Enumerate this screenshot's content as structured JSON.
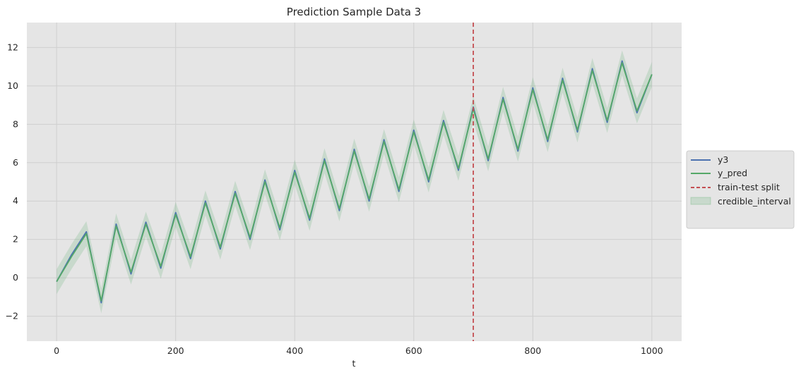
{
  "chart_data": {
    "type": "line",
    "title": "Prediction Sample Data 3",
    "xlabel": "t",
    "ylabel": "",
    "xlim": [
      -50,
      1050
    ],
    "ylim": [
      -3.3,
      13.3
    ],
    "xticks": [
      0,
      200,
      400,
      600,
      800,
      1000
    ],
    "yticks": [
      -2,
      0,
      2,
      4,
      6,
      8,
      10,
      12
    ],
    "x_tick_labels": [
      "0",
      "200",
      "400",
      "600",
      "800",
      "1000"
    ],
    "y_tick_labels": [
      "−2",
      "0",
      "2",
      "4",
      "6",
      "8",
      "10",
      "12"
    ],
    "grid": true,
    "legend_position": "center-right-outside",
    "split_x": 700,
    "series": [
      {
        "name": "y3",
        "color": "#4c72b0",
        "kind": "line"
      },
      {
        "name": "y_pred",
        "color": "#55a868",
        "kind": "line"
      },
      {
        "name": "train-test split",
        "color": "#c44e52",
        "kind": "dashed"
      },
      {
        "name": "credible_interval",
        "color": "#55a868",
        "kind": "band"
      }
    ],
    "x": [
      0,
      25,
      50,
      75,
      100,
      125,
      150,
      175,
      200,
      225,
      250,
      275,
      300,
      325,
      350,
      375,
      400,
      425,
      450,
      475,
      500,
      525,
      550,
      575,
      600,
      625,
      650,
      675,
      700,
      725,
      750,
      775,
      800,
      825,
      850,
      875,
      900,
      925,
      950,
      975,
      1000
    ],
    "y3": [
      -0.2,
      1.2,
      2.4,
      -1.3,
      2.8,
      0.2,
      2.9,
      0.5,
      3.4,
      1.0,
      4.0,
      1.5,
      4.5,
      2.0,
      5.1,
      2.5,
      5.6,
      3.0,
      6.2,
      3.5,
      6.7,
      4.0,
      7.2,
      4.5,
      7.7,
      5.0,
      8.2,
      5.6,
      8.9,
      6.1,
      9.4,
      6.6,
      9.9,
      7.1,
      10.4,
      7.6,
      10.9,
      8.1,
      11.3,
      8.6,
      10.6
    ],
    "y_pred": [
      -0.2,
      1.1,
      2.3,
      -1.2,
      2.7,
      0.3,
      2.8,
      0.6,
      3.3,
      1.1,
      3.9,
      1.6,
      4.4,
      2.1,
      5.0,
      2.6,
      5.5,
      3.1,
      6.1,
      3.6,
      6.6,
      4.1,
      7.1,
      4.6,
      7.6,
      5.1,
      8.1,
      5.7,
      8.8,
      6.2,
      9.3,
      6.7,
      9.8,
      7.2,
      10.3,
      7.7,
      10.8,
      8.2,
      11.2,
      8.7,
      10.6
    ],
    "interval_halfwidth": 0.65
  }
}
